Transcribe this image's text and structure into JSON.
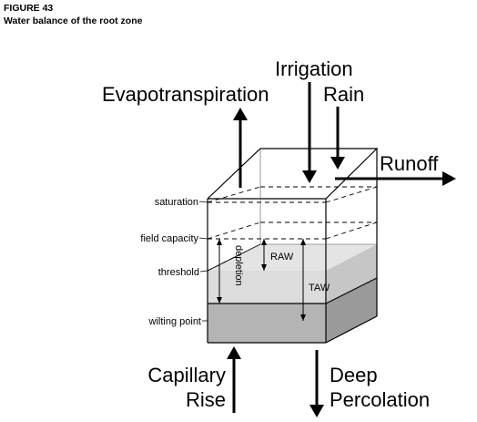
{
  "figure": {
    "label": "FIGURE 43",
    "title": "Water balance of the root zone"
  },
  "flows": {
    "evapotranspiration": "Evapotranspiration",
    "irrigation": "Irrigation",
    "rain": "Rain",
    "runoff": "Runoff",
    "capillary_rise_line1": "Capillary",
    "capillary_rise_line2": "Rise",
    "deep_percolation_line1": "Deep",
    "deep_percolation_line2": "Percolation"
  },
  "levels": {
    "saturation": "saturation",
    "field_capacity": "field capacity",
    "threshold": "threshold",
    "wilting_point": "wilting point"
  },
  "measures": {
    "depletion": "depletion",
    "raw": "RAW",
    "taw": "TAW"
  },
  "colors": {
    "raw_layer": "#dcdcdc",
    "raw_side": "#c6c6c6",
    "wilting_layer": "#b4b4b4",
    "wilting_side": "#9a9a9a",
    "line": "#000000"
  }
}
